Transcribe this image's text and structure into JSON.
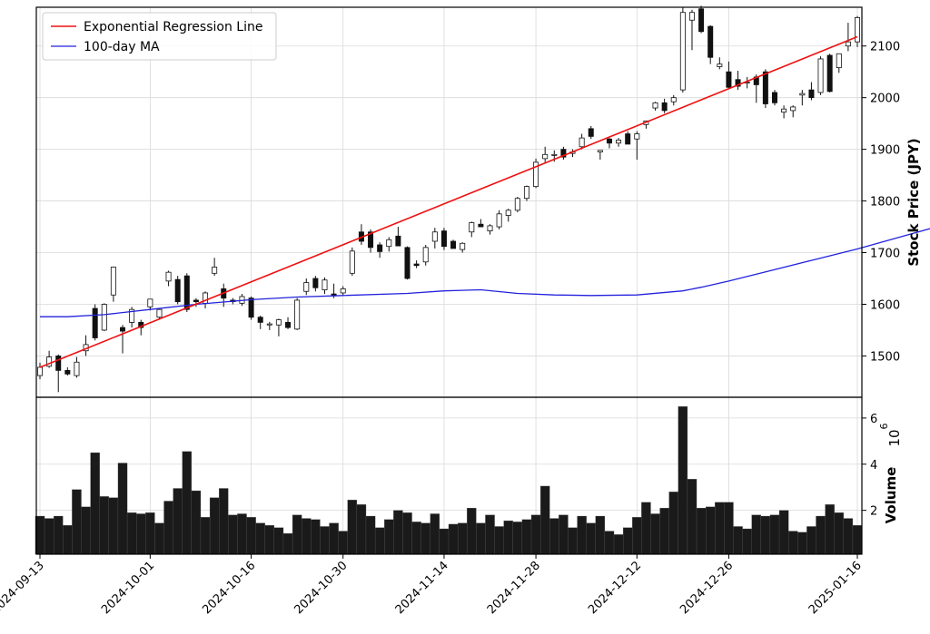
{
  "chart_data": [
    {
      "type": "candlestick",
      "ylabel": "Stock Price (JPY)",
      "ylim": [
        1420,
        2175
      ],
      "y_ticks": [
        1500,
        1600,
        1700,
        1800,
        1900,
        2000,
        2100
      ],
      "x_tick_labels": [
        "2024-09-13",
        "2024-10-01",
        "2024-10-16",
        "2024-10-30",
        "2024-11-14",
        "2024-11-28",
        "2024-12-12",
        "2024-12-26",
        "2025-01-16"
      ],
      "x_tick_index": [
        0,
        12,
        23,
        33,
        44,
        54,
        65,
        75,
        89
      ],
      "grid": true,
      "legend_position": "top-left",
      "legend": [
        {
          "label": "Exponential Regression Line",
          "color": "#ee1111"
        },
        {
          "label": "100-day MA",
          "color": "#2222dd"
        }
      ],
      "colors": {
        "up_fill": "#ffffff",
        "down_fill": "#111111",
        "edge": "#111111",
        "regression": "#ee1111",
        "ma": "#2222dd"
      },
      "regression": {
        "start": 1478,
        "end": 2118
      },
      "ma_points": [
        [
          0,
          1576
        ],
        [
          3,
          1576
        ],
        [
          7,
          1580
        ],
        [
          12,
          1590
        ],
        [
          17,
          1600
        ],
        [
          23,
          1609
        ],
        [
          28,
          1614
        ],
        [
          33,
          1617
        ],
        [
          40,
          1621
        ],
        [
          44,
          1626
        ],
        [
          48,
          1628
        ],
        [
          52,
          1621
        ],
        [
          56,
          1618
        ],
        [
          60,
          1617
        ],
        [
          65,
          1618
        ],
        [
          70,
          1626
        ],
        [
          72,
          1633
        ],
        [
          75,
          1645
        ],
        [
          80,
          1667
        ],
        [
          84,
          1685
        ],
        [
          89,
          1707
        ],
        [
          92,
          1722
        ],
        [
          95,
          1737
        ],
        [
          97,
          1747
        ]
      ],
      "ohlc": [
        [
          1462,
          1487,
          1455,
          1478
        ],
        [
          1480,
          1510,
          1477,
          1498
        ],
        [
          1500,
          1503,
          1430,
          1472
        ],
        [
          1472,
          1478,
          1462,
          1465
        ],
        [
          1462,
          1498,
          1458,
          1488
        ],
        [
          1510,
          1540,
          1500,
          1522
        ],
        [
          1592,
          1600,
          1530,
          1535
        ],
        [
          1550,
          1602,
          1548,
          1600
        ],
        [
          1618,
          1673,
          1605,
          1672
        ],
        [
          1555,
          1560,
          1505,
          1548
        ],
        [
          1565,
          1595,
          1555,
          1590
        ],
        [
          1565,
          1570,
          1540,
          1555
        ],
        [
          1595,
          1610,
          1588,
          1610
        ],
        [
          1575,
          1592,
          1570,
          1590
        ],
        [
          1645,
          1665,
          1635,
          1662
        ],
        [
          1648,
          1655,
          1600,
          1605
        ],
        [
          1655,
          1660,
          1585,
          1590
        ],
        [
          1608,
          1612,
          1595,
          1605
        ],
        [
          1602,
          1625,
          1592,
          1622
        ],
        [
          1660,
          1690,
          1655,
          1672
        ],
        [
          1630,
          1640,
          1595,
          1612
        ],
        [
          1608,
          1612,
          1600,
          1605
        ],
        [
          1602,
          1620,
          1597,
          1615
        ],
        [
          1612,
          1615,
          1570,
          1575
        ],
        [
          1575,
          1578,
          1552,
          1565
        ],
        [
          1560,
          1566,
          1550,
          1562
        ],
        [
          1560,
          1572,
          1538,
          1570
        ],
        [
          1565,
          1575,
          1552,
          1555
        ],
        [
          1552,
          1612,
          1550,
          1608
        ],
        [
          1625,
          1650,
          1618,
          1642
        ],
        [
          1650,
          1655,
          1625,
          1632
        ],
        [
          1628,
          1652,
          1620,
          1647
        ],
        [
          1620,
          1640,
          1612,
          1618
        ],
        [
          1622,
          1635,
          1618,
          1630
        ],
        [
          1660,
          1710,
          1655,
          1703
        ],
        [
          1740,
          1755,
          1715,
          1722
        ],
        [
          1740,
          1745,
          1700,
          1710
        ],
        [
          1715,
          1720,
          1690,
          1702
        ],
        [
          1712,
          1730,
          1702,
          1725
        ],
        [
          1732,
          1750,
          1715,
          1713
        ],
        [
          1710,
          1712,
          1648,
          1650
        ],
        [
          1678,
          1685,
          1670,
          1675
        ],
        [
          1682,
          1715,
          1675,
          1710
        ],
        [
          1722,
          1748,
          1708,
          1740
        ],
        [
          1742,
          1748,
          1705,
          1712
        ],
        [
          1722,
          1725,
          1708,
          1708
        ],
        [
          1706,
          1720,
          1700,
          1718
        ],
        [
          1740,
          1760,
          1730,
          1758
        ],
        [
          1755,
          1765,
          1750,
          1750
        ],
        [
          1742,
          1755,
          1735,
          1752
        ],
        [
          1750,
          1782,
          1745,
          1775
        ],
        [
          1772,
          1785,
          1760,
          1782
        ],
        [
          1782,
          1808,
          1778,
          1805
        ],
        [
          1805,
          1830,
          1800,
          1828
        ],
        [
          1828,
          1882,
          1825,
          1875
        ],
        [
          1882,
          1905,
          1875,
          1890
        ],
        [
          1888,
          1898,
          1876,
          1890
        ],
        [
          1900,
          1905,
          1880,
          1885
        ],
        [
          1892,
          1900,
          1885,
          1895
        ],
        [
          1905,
          1930,
          1900,
          1922
        ],
        [
          1940,
          1945,
          1920,
          1925
        ],
        [
          1895,
          1898,
          1880,
          1898
        ],
        [
          1920,
          1922,
          1902,
          1912
        ],
        [
          1912,
          1922,
          1905,
          1918
        ],
        [
          1930,
          1935,
          1912,
          1910
        ],
        [
          1920,
          1935,
          1880,
          1930
        ],
        [
          1948,
          1955,
          1940,
          1955
        ],
        [
          1980,
          1992,
          1975,
          1990
        ],
        [
          1990,
          1998,
          1970,
          1975
        ],
        [
          1992,
          2005,
          1985,
          2000
        ],
        [
          2015,
          2175,
          2010,
          2165
        ],
        [
          2150,
          2170,
          2092,
          2165
        ],
        [
          2172,
          2178,
          2125,
          2128
        ],
        [
          2138,
          2140,
          2065,
          2078
        ],
        [
          2060,
          2078,
          2055,
          2065
        ],
        [
          2050,
          2070,
          2018,
          2020
        ],
        [
          2035,
          2052,
          2015,
          2022
        ],
        [
          2030,
          2040,
          2018,
          2030
        ],
        [
          2040,
          2045,
          1990,
          2025
        ],
        [
          2050,
          2055,
          1980,
          1988
        ],
        [
          2010,
          2015,
          1985,
          1990
        ],
        [
          1972,
          1985,
          1960,
          1978
        ],
        [
          1975,
          1985,
          1962,
          1982
        ],
        [
          2005,
          2015,
          1985,
          2008
        ],
        [
          2015,
          2030,
          1995,
          2000
        ],
        [
          2010,
          2080,
          2005,
          2075
        ],
        [
          2082,
          2085,
          2010,
          2012
        ],
        [
          2058,
          2085,
          2048,
          2085
        ],
        [
          2100,
          2145,
          2090,
          2108
        ],
        [
          2108,
          2158,
          2098,
          2155
        ]
      ]
    },
    {
      "type": "bar",
      "ylabel": "Volume",
      "multiplier_label": "10",
      "multiplier_exponent": "6",
      "ylim": [
        0.1,
        6.9
      ],
      "y_ticks": [
        2,
        4,
        6
      ],
      "grid": true,
      "color": "#1a1a1a",
      "values": [
        1.75,
        1.65,
        1.75,
        1.35,
        2.9,
        2.15,
        4.5,
        2.6,
        2.55,
        4.05,
        1.9,
        1.85,
        1.9,
        1.45,
        2.4,
        2.95,
        4.55,
        2.85,
        1.7,
        2.55,
        2.95,
        1.8,
        1.85,
        1.7,
        1.45,
        1.35,
        1.25,
        1.0,
        1.8,
        1.65,
        1.6,
        1.3,
        1.45,
        1.1,
        2.45,
        2.25,
        1.75,
        1.25,
        1.6,
        2.0,
        1.9,
        1.5,
        1.45,
        1.85,
        1.2,
        1.4,
        1.45,
        2.1,
        1.45,
        1.8,
        1.3,
        1.55,
        1.5,
        1.6,
        1.8,
        3.05,
        1.65,
        1.8,
        1.25,
        1.75,
        1.45,
        1.75,
        1.1,
        0.95,
        1.25,
        1.7,
        2.35,
        1.85,
        2.1,
        2.8,
        6.5,
        3.35,
        2.1,
        2.15,
        2.35,
        2.35,
        1.3,
        1.2,
        1.8,
        1.75,
        1.8,
        2.0,
        1.1,
        1.05,
        1.3,
        1.75,
        2.25,
        1.9,
        1.65,
        1.35
      ]
    }
  ]
}
